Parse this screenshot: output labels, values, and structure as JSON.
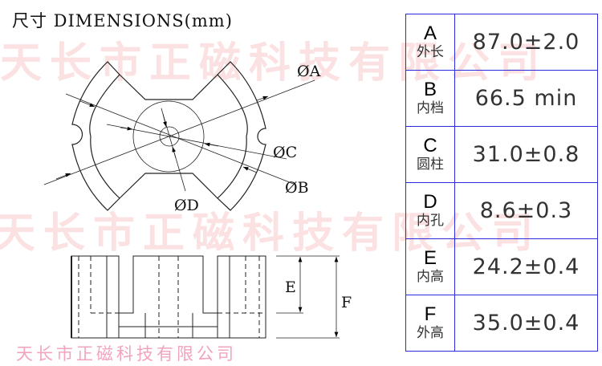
{
  "watermark": "天长市正磁科技有限公司",
  "title": "尺寸 DIMENSIONS(mm)",
  "footer": "天长市正磁科技有限公司",
  "labels": {
    "a": "ØA",
    "b": "ØB",
    "c": "ØC",
    "d": "ØD",
    "e": "E",
    "f": "F"
  },
  "table": [
    {
      "key": "A",
      "name": "外长",
      "value": "87.0±2.0"
    },
    {
      "key": "B",
      "name": "内档",
      "value": "66.5 min"
    },
    {
      "key": "C",
      "name": "圆柱",
      "value": "31.0±0.8"
    },
    {
      "key": "D",
      "name": "内孔",
      "value": "8.6±0.3"
    },
    {
      "key": "E",
      "name": "内高",
      "value": "24.2±0.4"
    },
    {
      "key": "F",
      "name": "外高",
      "value": "35.0±0.4"
    }
  ],
  "colors": {
    "table_border": "#2a2ade",
    "watermark": "#fbe1e1",
    "footer": "#f2a3c0"
  }
}
